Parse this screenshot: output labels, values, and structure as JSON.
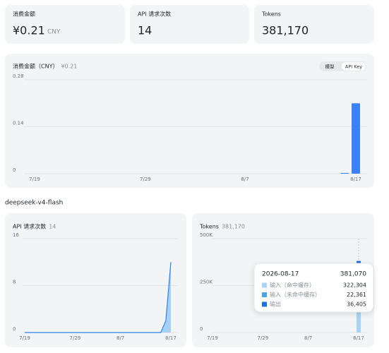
{
  "stats": [
    {
      "label": "消费金额",
      "value": "¥0.21",
      "unit": "CNY"
    },
    {
      "label": "API 请求次数",
      "value": "14"
    },
    {
      "label": "Tokens",
      "value": "381,170"
    }
  ],
  "section_title": "deepseek-v4-flash",
  "toggle": [
    "模型",
    "API Key"
  ],
  "toggle_active": 1,
  "chart_data": [
    {
      "type": "bar",
      "title": "消费金额（CNY）",
      "subtitle": "¥0.21",
      "color": "#3b82f6",
      "grid": true,
      "categories": [
        "7/19",
        null,
        null,
        null,
        null,
        null,
        null,
        null,
        null,
        null,
        "7/29",
        null,
        null,
        null,
        null,
        null,
        null,
        null,
        null,
        "8/7",
        null,
        null,
        null,
        null,
        null,
        null,
        null,
        null,
        null,
        "8/17"
      ],
      "values": [
        0,
        0,
        0,
        0,
        0,
        0,
        0,
        0,
        0,
        0,
        0,
        0,
        0,
        0,
        0,
        0,
        0,
        0,
        0,
        0,
        0,
        0,
        0,
        0,
        0,
        0,
        0,
        0,
        0.002,
        0.21
      ],
      "ylim": [
        0,
        0.28
      ],
      "yticks": [
        0,
        0.14,
        0.28
      ]
    },
    {
      "type": "area",
      "title": "API 请求次数",
      "subtitle": "14",
      "color": "#2f80ed",
      "fill": "#93c5fd",
      "grid": true,
      "categories": [
        "7/19",
        null,
        null,
        null,
        null,
        null,
        null,
        null,
        null,
        null,
        "7/29",
        null,
        null,
        null,
        null,
        null,
        null,
        null,
        null,
        "8/7",
        null,
        null,
        null,
        null,
        null,
        null,
        null,
        null,
        null,
        "8/17"
      ],
      "values": [
        0,
        0,
        0,
        0,
        0,
        0,
        0,
        0,
        0,
        0,
        0,
        0,
        0,
        0,
        0,
        0,
        0,
        0,
        0,
        0,
        0,
        0,
        0,
        0,
        0,
        0,
        0,
        0,
        2,
        12
      ],
      "ylim": [
        0,
        16
      ],
      "yticks": [
        0,
        8,
        16
      ]
    },
    {
      "type": "stacked_bar",
      "title": "Tokens",
      "subtitle": "381,170",
      "grid": true,
      "categories": [
        "7/19",
        null,
        null,
        null,
        null,
        null,
        null,
        null,
        null,
        null,
        "7/29",
        null,
        null,
        null,
        null,
        null,
        null,
        null,
        null,
        "8/7",
        null,
        null,
        null,
        null,
        null,
        null,
        null,
        null,
        null,
        "8/17"
      ],
      "series": [
        {
          "name": "输入（命中缓存）",
          "color": "#a9d4f5",
          "values": [
            0,
            0,
            0,
            0,
            0,
            0,
            0,
            0,
            0,
            0,
            0,
            0,
            0,
            0,
            0,
            0,
            0,
            0,
            0,
            0,
            0,
            0,
            0,
            0,
            0,
            0,
            0,
            0,
            0,
            322304
          ],
          "value_labels": [
            null,
            null,
            null,
            null,
            null,
            null,
            null,
            null,
            null,
            null,
            null,
            null,
            null,
            null,
            null,
            null,
            null,
            null,
            null,
            null,
            null,
            null,
            null,
            null,
            null,
            null,
            null,
            null,
            null,
            "322,304"
          ]
        },
        {
          "name": "输入（未命中缓存）",
          "color": "#4aa3ee",
          "values": [
            0,
            0,
            0,
            0,
            0,
            0,
            0,
            0,
            0,
            0,
            0,
            0,
            0,
            0,
            0,
            0,
            0,
            0,
            0,
            0,
            0,
            0,
            0,
            0,
            0,
            0,
            0,
            0,
            0,
            22361
          ],
          "value_labels": [
            null,
            null,
            null,
            null,
            null,
            null,
            null,
            null,
            null,
            null,
            null,
            null,
            null,
            null,
            null,
            null,
            null,
            null,
            null,
            null,
            null,
            null,
            null,
            null,
            null,
            null,
            null,
            null,
            null,
            "22,361"
          ]
        },
        {
          "name": "输出",
          "color": "#1e6fe0",
          "values": [
            0,
            0,
            0,
            0,
            0,
            0,
            0,
            0,
            0,
            0,
            0,
            0,
            0,
            0,
            0,
            0,
            0,
            0,
            0,
            0,
            0,
            0,
            0,
            0,
            0,
            0,
            0,
            0,
            100,
            36405
          ],
          "value_labels": [
            null,
            null,
            null,
            null,
            null,
            null,
            null,
            null,
            null,
            null,
            null,
            null,
            null,
            null,
            null,
            null,
            null,
            null,
            null,
            null,
            null,
            null,
            null,
            null,
            null,
            null,
            null,
            null,
            null,
            "36,405"
          ]
        }
      ],
      "ylim": [
        0,
        500000
      ],
      "yticks": [
        {
          "value": 0,
          "label": "0"
        },
        {
          "value": 250000,
          "label": "250K"
        },
        {
          "value": 500000,
          "label": "500K"
        }
      ],
      "tooltip": {
        "date": "2026-08-17",
        "index": 29,
        "total": 381070,
        "total_label": "381,070"
      }
    }
  ]
}
